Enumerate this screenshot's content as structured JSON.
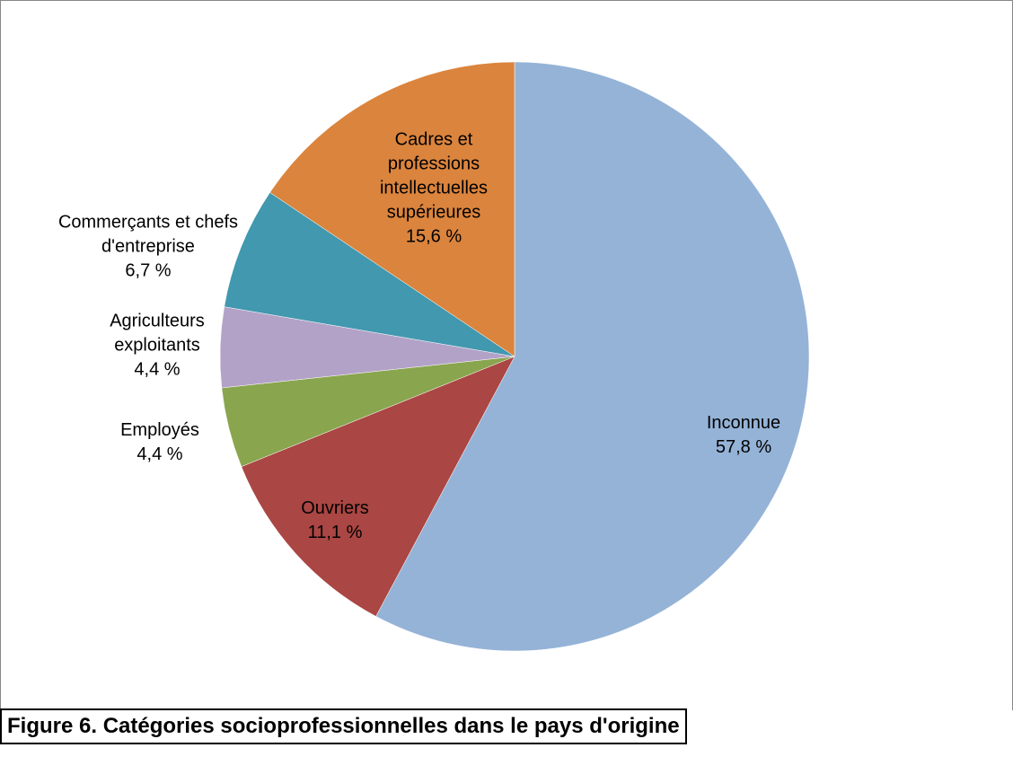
{
  "chart_data": {
    "type": "pie",
    "title": "Figure 6. Catégories socioprofessionnelles dans le pays d'origine",
    "categories": [
      "Inconnue",
      "Ouvriers",
      "Employés",
      "Agriculteurs exploitants",
      "Commerçants et chefs d'entreprise",
      "Cadres et professions intellectuelles supérieures"
    ],
    "values": [
      57.8,
      11.1,
      4.4,
      4.4,
      6.7,
      15.6
    ],
    "value_labels": [
      "57,8 %",
      "11,1 %",
      "4,4 %",
      "4,4 %",
      "6,7 %",
      "15,6 %"
    ],
    "colors": [
      "#95b3d7",
      "#aa4643",
      "#89a54e",
      "#b3a2c7",
      "#4198af",
      "#db843d"
    ]
  }
}
